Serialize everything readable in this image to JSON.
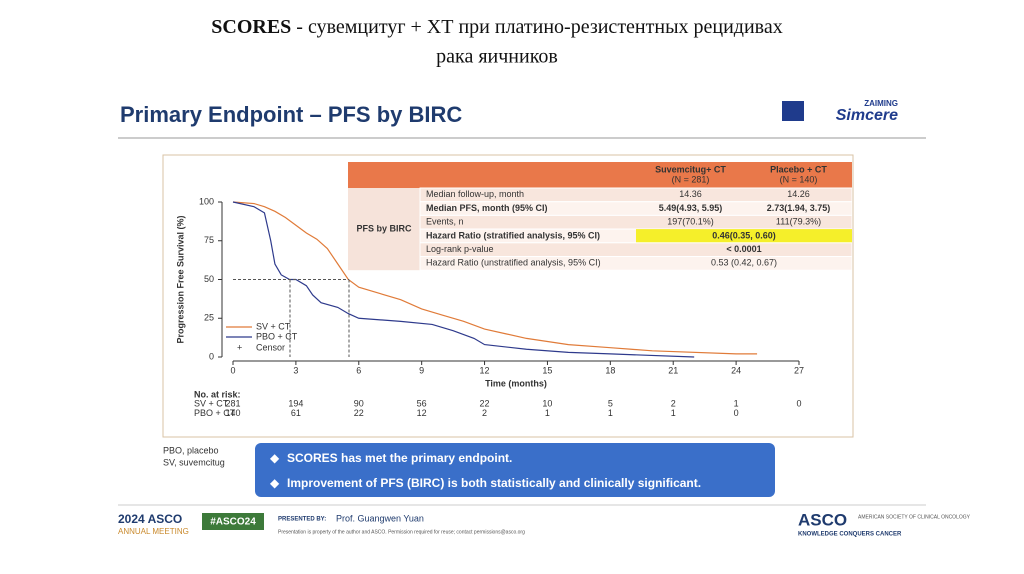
{
  "header": {
    "title_bold": "SCORES",
    "title_rest": " - сувемцитуг + ХТ при платино-резистентных рецидивах",
    "title_line2": "рака яичников"
  },
  "slide": {
    "title": "Primary Endpoint – PFS by BIRC",
    "logo_top": "ZAIMING",
    "logo": "Simcere"
  },
  "chart_data": {
    "type": "line",
    "x_label": "Time (months)",
    "y_label": "Progression Free Survival (%)",
    "xlim": [
      0,
      27
    ],
    "xticks": [
      0,
      3,
      6,
      9,
      12,
      15,
      18,
      21,
      24,
      27
    ],
    "ylim": [
      0,
      100
    ],
    "yticks": [
      0,
      25,
      50,
      75,
      100
    ],
    "censor_label": "Censor",
    "series": [
      {
        "name": "SV + CT",
        "color": "#e07b39",
        "x": [
          0,
          1,
          1.5,
          2,
          2.5,
          3,
          3.5,
          4,
          4.5,
          5,
          5.5,
          6,
          7,
          8,
          9,
          10,
          11,
          12,
          13,
          14,
          15,
          16,
          18,
          19,
          20,
          24,
          25
        ],
        "values": [
          100,
          99,
          97,
          94,
          90,
          85,
          80,
          76,
          70,
          60,
          50,
          45,
          41,
          37,
          31,
          27,
          23,
          18,
          15,
          12,
          10,
          8,
          6,
          5,
          4,
          2,
          2
        ]
      },
      {
        "name": "PBO + CT",
        "color": "#2e3a8c",
        "x": [
          0,
          1,
          1.5,
          1.8,
          2,
          2.3,
          2.7,
          3,
          3.5,
          3.8,
          4.2,
          5,
          5.5,
          6,
          8,
          9.5,
          10.5,
          11.5,
          12,
          14,
          16,
          18,
          22
        ],
        "values": [
          100,
          97,
          93,
          75,
          60,
          53,
          50,
          50,
          46,
          40,
          35,
          32,
          28,
          25,
          23,
          21,
          17,
          12,
          8,
          5,
          3,
          2,
          0
        ]
      }
    ]
  },
  "at_risk": {
    "label": "No. at risk:",
    "rows": [
      {
        "name": "SV + CT",
        "values": [
          281,
          194,
          90,
          56,
          22,
          10,
          5,
          2,
          1,
          0
        ]
      },
      {
        "name": "PBO + CT",
        "values": [
          140,
          61,
          22,
          12,
          2,
          1,
          1,
          1,
          0
        ]
      }
    ]
  },
  "table": {
    "group": "PFS by BIRC",
    "columns": [
      [
        "Suvemcitug+ CT",
        "(N = 281)"
      ],
      [
        "Placebo + CT",
        "(N = 140)"
      ]
    ],
    "rows": [
      [
        "Median follow-up, month",
        "14.36",
        "14.26"
      ],
      [
        "Median PFS, month (95% CI)",
        "5.49(4.93, 5.95)",
        "2.73(1.94, 3.75)"
      ],
      [
        "Events, n",
        "197(70.1%)",
        "111(79.3%)"
      ],
      [
        "Hazard Ratio (stratified analysis, 95% CI)",
        "0.46(0.35, 0.60)"
      ],
      [
        "Log-rank p-value",
        "< 0.0001"
      ],
      [
        "Hazard Ratio (unstratified analysis, 95% CI)",
        "0.53 (0.42, 0.67)"
      ]
    ]
  },
  "footnotes": [
    "PBO, placebo",
    "SV, suvemcitug"
  ],
  "bullets": [
    "SCORES has met the primary endpoint.",
    "Improvement of PFS (BIRC) is both statistically and clinically significant."
  ],
  "footer": {
    "meeting_year": "2024",
    "meeting_asco": "ASCO",
    "meeting": "ANNUAL MEETING",
    "hashtag": "#ASCO24",
    "presented_by": "PRESENTED BY:",
    "presenter": "Prof. Guangwen Yuan",
    "disclaimer": "Presentation is property of the author and ASCO. Permission required for reuse; contact permissions@asco.org",
    "asco": "ASCO",
    "society": "AMERICAN SOCIETY OF CLINICAL ONCOLOGY",
    "motto": "KNOWLEDGE CONQUERS CANCER"
  }
}
